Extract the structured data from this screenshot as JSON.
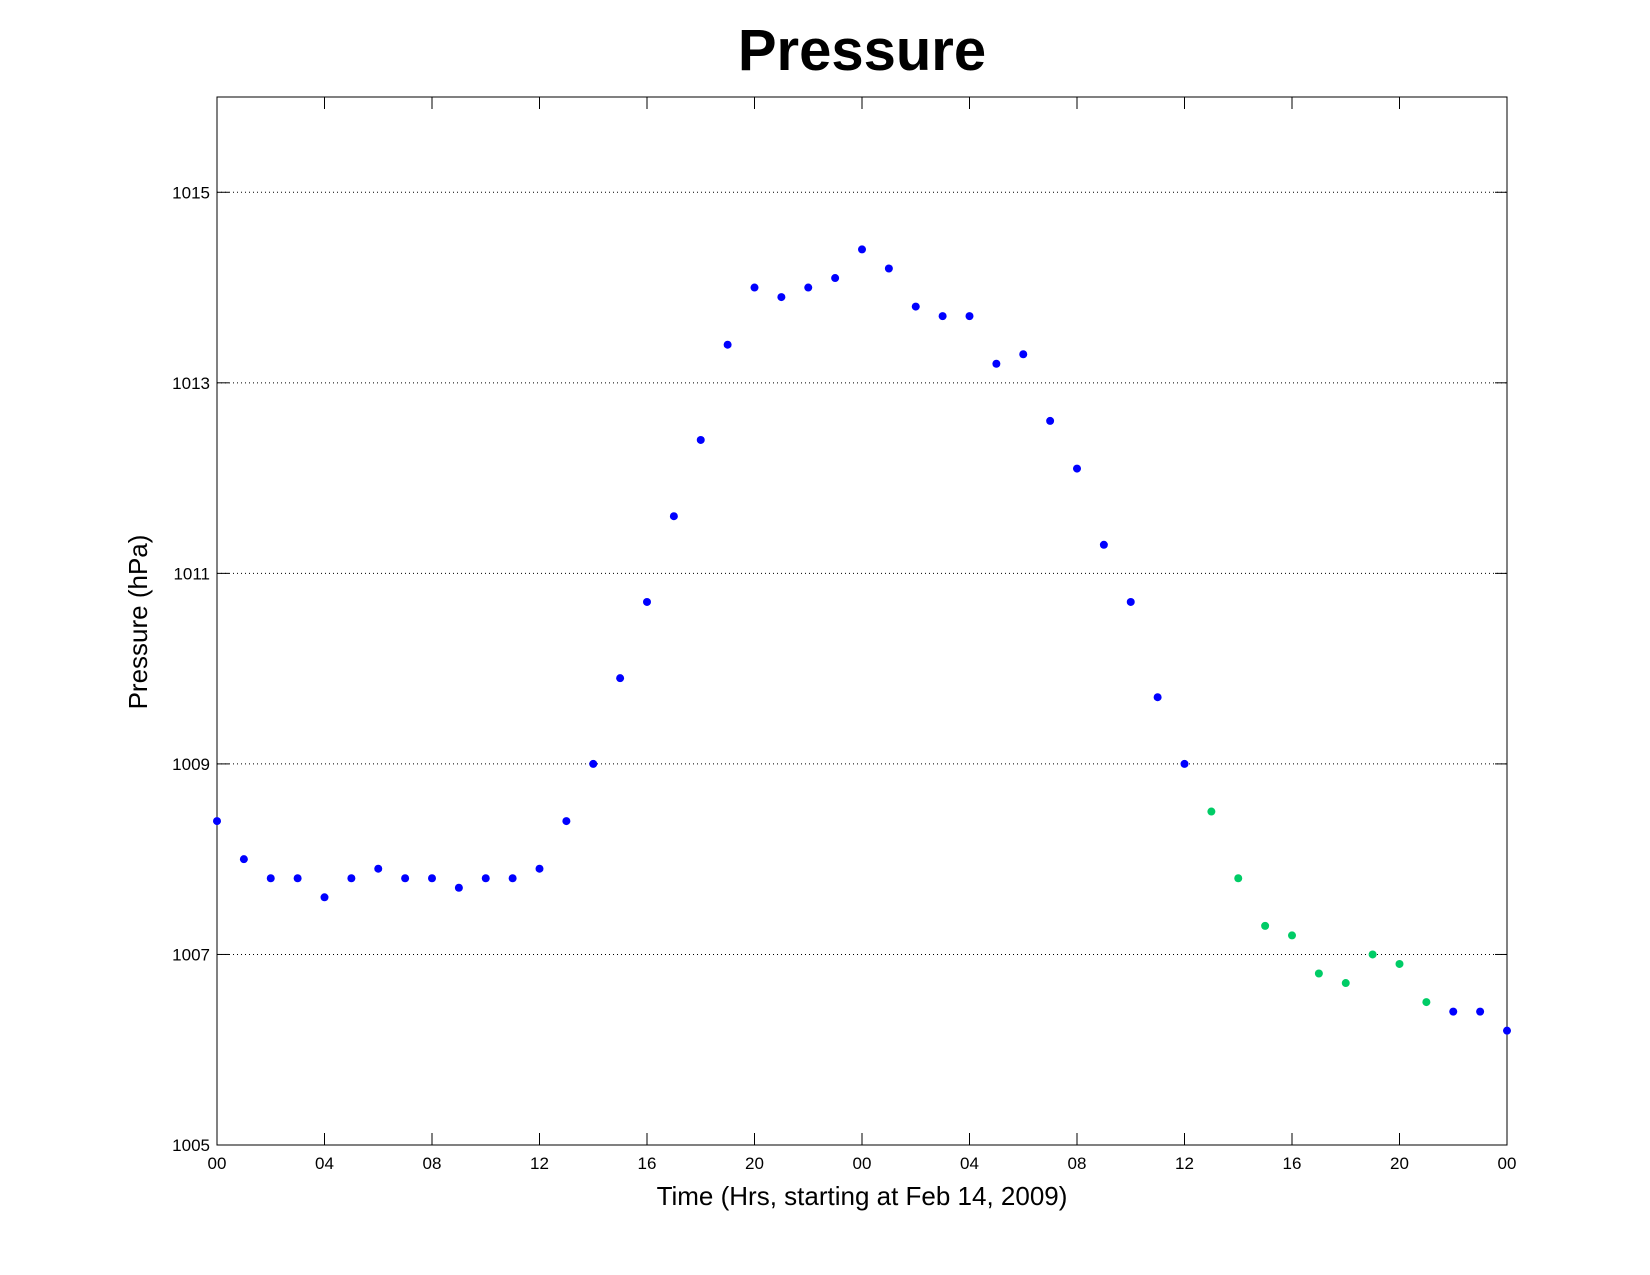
{
  "chart_data": {
    "type": "scatter",
    "title": "Pressure",
    "xlabel": "Time (Hrs, starting at Feb 14, 2009)",
    "ylabel": "Pressure (hPa)",
    "xlim": [
      0,
      48
    ],
    "ylim": [
      1005,
      1016
    ],
    "grid": "y-major",
    "x_tick_values": [
      0,
      4,
      8,
      12,
      16,
      20,
      24,
      28,
      32,
      36,
      40,
      44,
      48
    ],
    "x_tick_labels": [
      "00",
      "04",
      "08",
      "12",
      "16",
      "20",
      "00",
      "04",
      "08",
      "12",
      "16",
      "20",
      "00"
    ],
    "y_ticks": [
      1005,
      1007,
      1009,
      1011,
      1013,
      1015
    ],
    "colors": {
      "observed": "#0000ff",
      "highlighted": "#00cc66"
    },
    "series": [
      {
        "color": "#0000ff",
        "points": [
          [
            0,
            1008.4
          ],
          [
            1,
            1008.0
          ],
          [
            2,
            1007.8
          ],
          [
            3,
            1007.8
          ],
          [
            4,
            1007.6
          ],
          [
            5,
            1007.8
          ],
          [
            6,
            1007.9
          ],
          [
            7,
            1007.8
          ],
          [
            8,
            1007.8
          ],
          [
            9,
            1007.7
          ],
          [
            10,
            1007.8
          ],
          [
            11,
            1007.8
          ],
          [
            12,
            1007.9
          ],
          [
            13,
            1008.4
          ],
          [
            14,
            1009.0
          ],
          [
            15,
            1009.9
          ],
          [
            16,
            1010.7
          ],
          [
            17,
            1011.6
          ],
          [
            18,
            1012.4
          ],
          [
            19,
            1013.4
          ],
          [
            20,
            1014.0
          ],
          [
            21,
            1013.9
          ],
          [
            22,
            1014.0
          ],
          [
            23,
            1014.1
          ],
          [
            24,
            1014.4
          ],
          [
            25,
            1014.2
          ],
          [
            26,
            1013.8
          ],
          [
            27,
            1013.7
          ],
          [
            28,
            1013.7
          ],
          [
            29,
            1013.2
          ],
          [
            30,
            1013.3
          ],
          [
            31,
            1012.6
          ],
          [
            32,
            1012.1
          ],
          [
            33,
            1011.3
          ],
          [
            34,
            1010.7
          ],
          [
            35,
            1009.7
          ],
          [
            36,
            1009.0
          ],
          [
            46,
            1006.4
          ],
          [
            47,
            1006.4
          ],
          [
            48,
            1006.2
          ]
        ]
      },
      {
        "color": "#00cc66",
        "points": [
          [
            37,
            1008.5
          ],
          [
            38,
            1007.8
          ],
          [
            39,
            1007.3
          ],
          [
            40,
            1007.2
          ],
          [
            41,
            1006.8
          ],
          [
            42,
            1006.7
          ],
          [
            43,
            1007.0
          ],
          [
            44,
            1006.9
          ],
          [
            45,
            1006.5
          ]
        ]
      }
    ]
  }
}
